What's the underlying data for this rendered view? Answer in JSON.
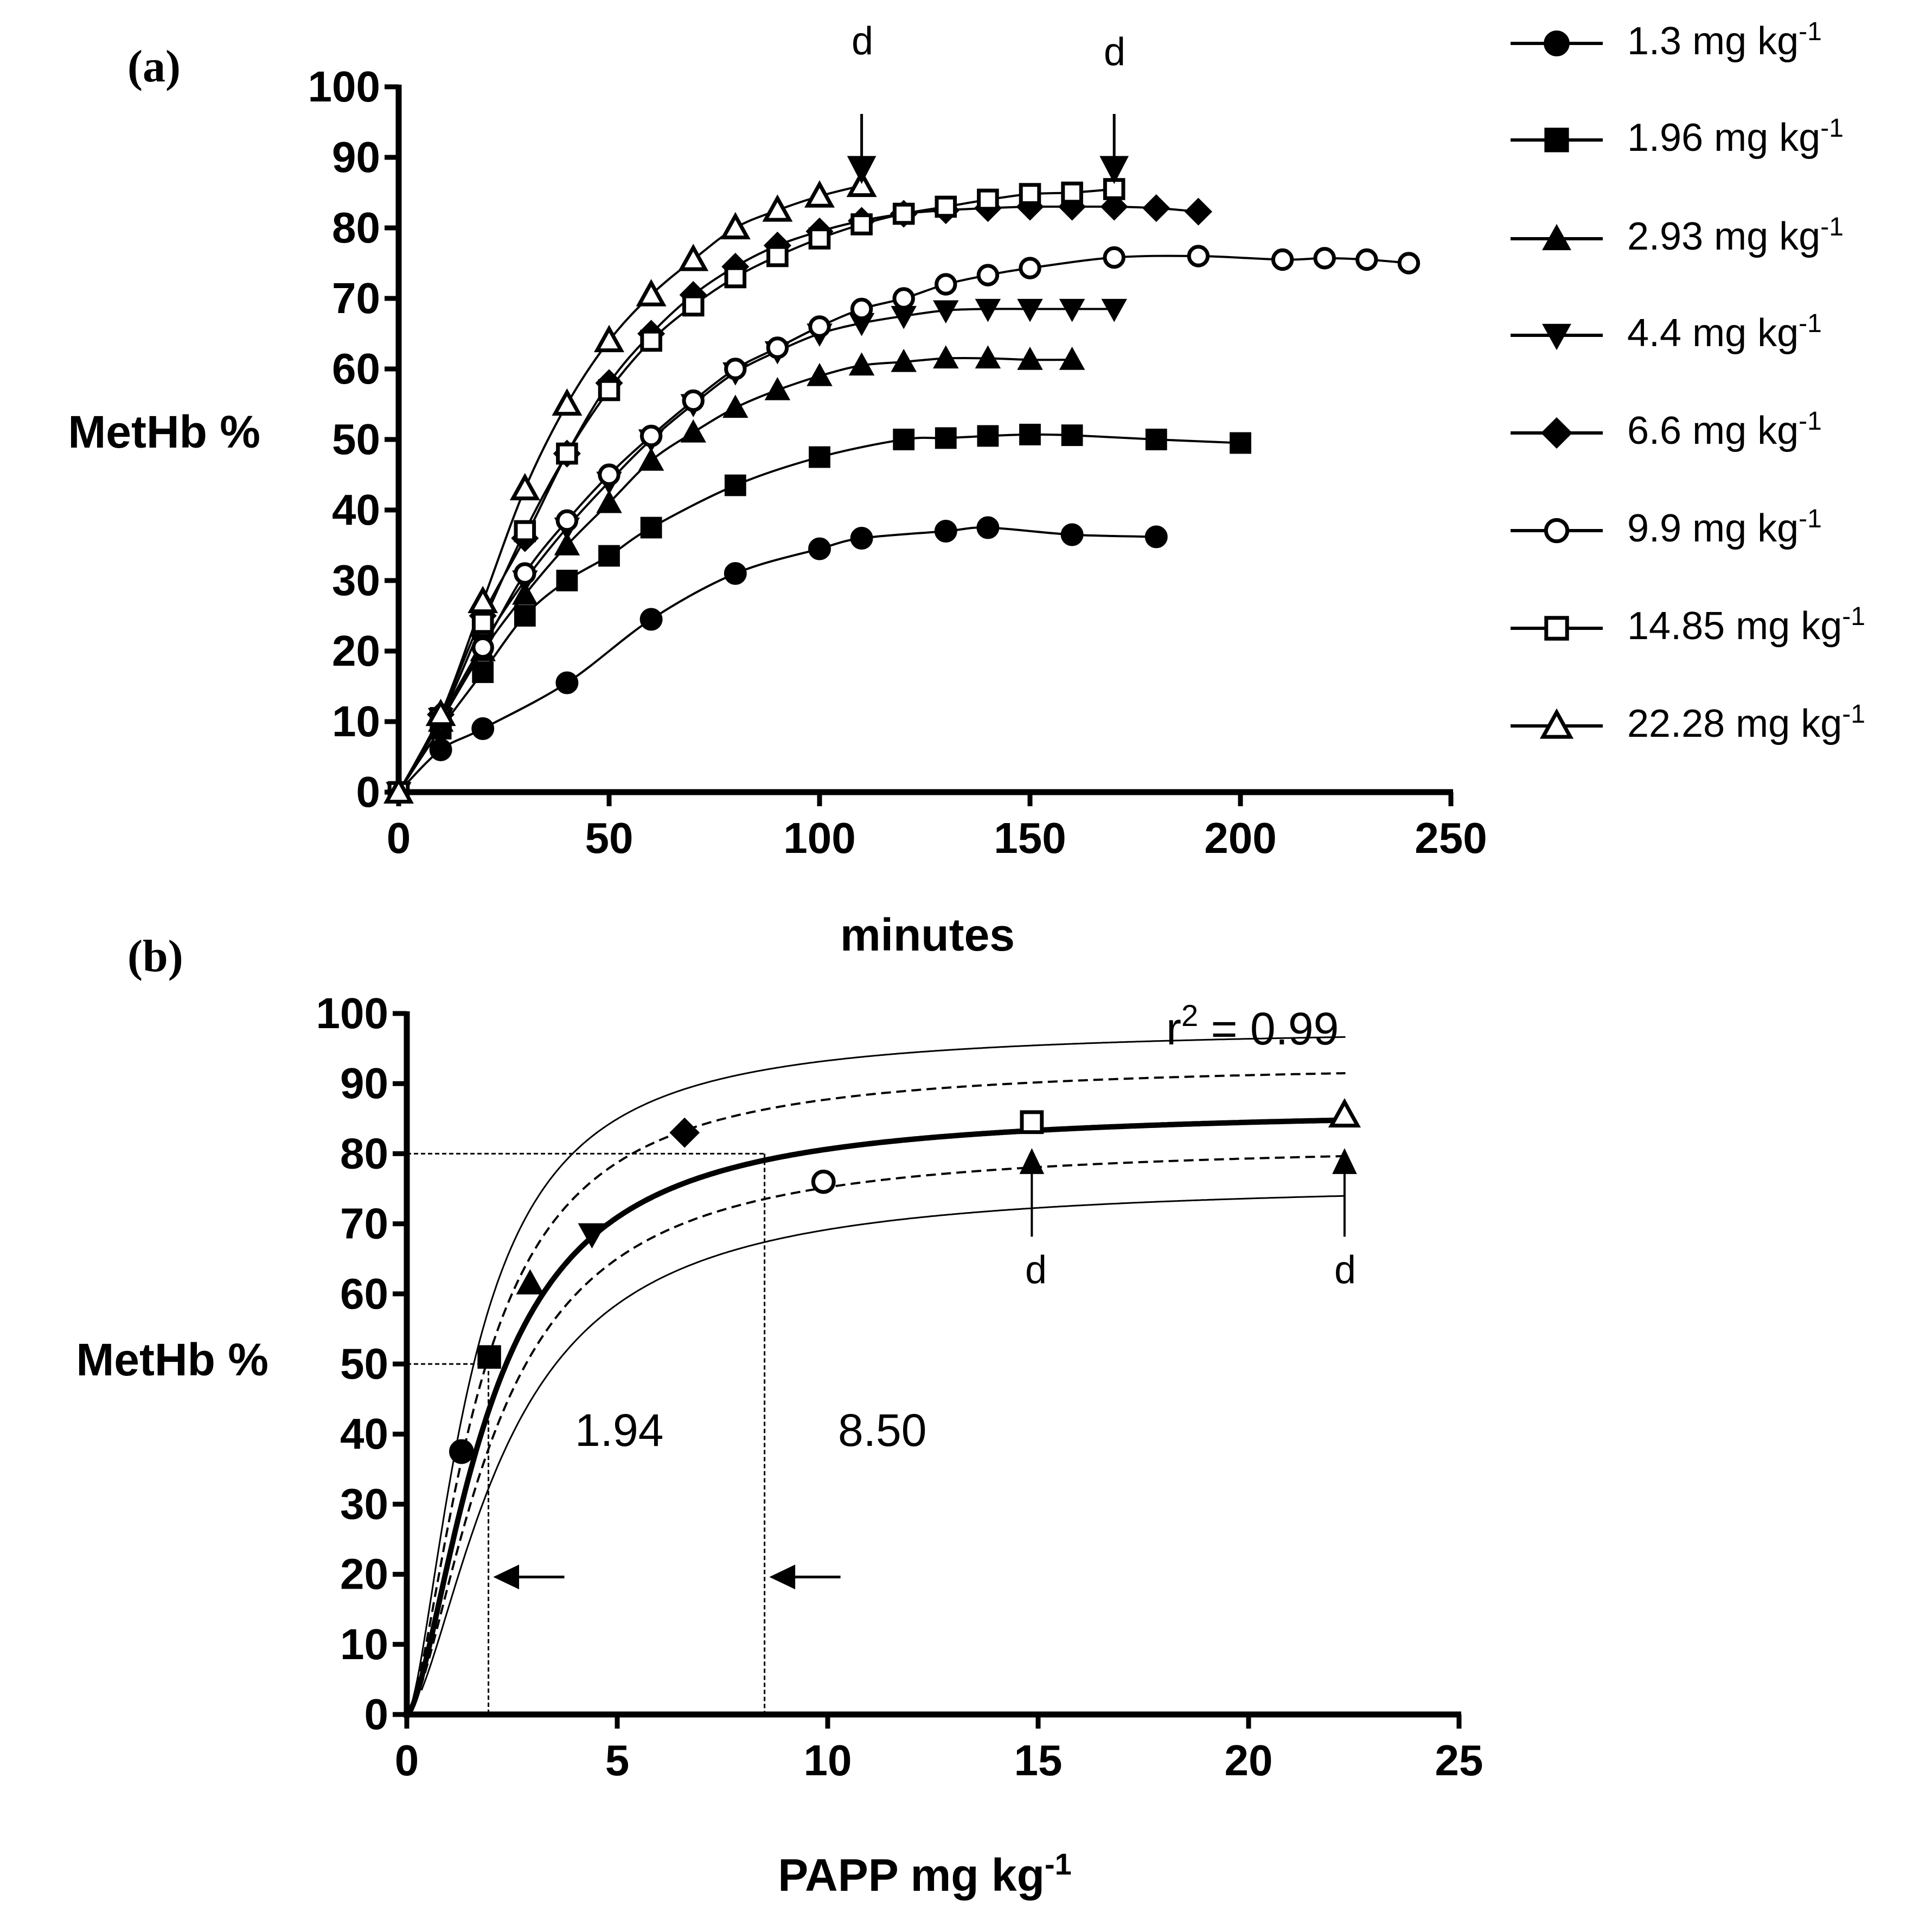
{
  "colors": {
    "ink": "#000000",
    "background": "#ffffff"
  },
  "chart_data": [
    {
      "panel_label": "(a)",
      "type": "line",
      "xlabel": "minutes",
      "ylabel": "MetHb %",
      "xlim": [
        0,
        250
      ],
      "ylim": [
        0,
        100
      ],
      "xticks": [
        0,
        50,
        100,
        150,
        200,
        250
      ],
      "yticks": [
        0,
        10,
        20,
        30,
        40,
        50,
        60,
        70,
        80,
        90,
        100
      ],
      "grid": false,
      "legend_position": "right",
      "annotations": [
        {
          "text": "d",
          "x": 110,
          "y": 86,
          "kind": "down-arrow"
        },
        {
          "text": "d",
          "x": 170,
          "y": 86,
          "kind": "down-arrow"
        }
      ],
      "series": [
        {
          "name": "1.3 mg kg",
          "superscript": "-1",
          "marker": "filled-circle",
          "x": [
            0,
            10,
            20,
            40,
            60,
            80,
            100,
            110,
            130,
            140,
            160,
            180
          ],
          "y": [
            0,
            6,
            9,
            15.5,
            24.5,
            31,
            34.5,
            36,
            37,
            37.5,
            36.5,
            36.2
          ]
        },
        {
          "name": "1.96 mg kg",
          "superscript": "-1",
          "marker": "filled-square",
          "x": [
            0,
            10,
            20,
            30,
            40,
            50,
            60,
            80,
            100,
            120,
            130,
            140,
            150,
            160,
            180,
            200
          ],
          "y": [
            0,
            9,
            17,
            25,
            30,
            33.5,
            37.5,
            43.5,
            47.5,
            50,
            50.2,
            50.5,
            50.7,
            50.6,
            50,
            49.5
          ]
        },
        {
          "name": "2.93 mg kg",
          "superscript": "-1",
          "marker": "filled-triangle-up",
          "x": [
            0,
            10,
            20,
            30,
            40,
            50,
            60,
            70,
            80,
            90,
            100,
            110,
            120,
            130,
            140,
            150,
            160
          ],
          "y": [
            0,
            10,
            20,
            28,
            35,
            41,
            47,
            51,
            54.5,
            57,
            59,
            60.5,
            61,
            61.5,
            61.5,
            61.3,
            61.3
          ]
        },
        {
          "name": "4.4 mg kg",
          "superscript": "-1",
          "marker": "filled-triangle-down",
          "x": [
            0,
            10,
            20,
            30,
            40,
            50,
            60,
            70,
            80,
            90,
            100,
            110,
            120,
            130,
            140,
            150,
            160,
            170
          ],
          "y": [
            0,
            10.5,
            21,
            30,
            37.5,
            44,
            50,
            55,
            59.5,
            62.5,
            65,
            66.5,
            67.5,
            68.3,
            68.5,
            68.5,
            68.5,
            68.5
          ]
        },
        {
          "name": "6.6 mg kg",
          "superscript": "-1",
          "marker": "filled-diamond",
          "x": [
            0,
            10,
            20,
            30,
            40,
            50,
            60,
            70,
            80,
            90,
            100,
            110,
            120,
            130,
            140,
            150,
            160,
            170,
            180,
            190
          ],
          "y": [
            0,
            11,
            25,
            36,
            48,
            58,
            65,
            70.5,
            74.5,
            77.5,
            79.5,
            81,
            82,
            82.5,
            82.8,
            83,
            83,
            83,
            82.8,
            82.3
          ]
        },
        {
          "name": "9.9 mg kg",
          "superscript": "-1",
          "marker": "open-circle",
          "x": [
            0,
            10,
            20,
            30,
            40,
            50,
            60,
            70,
            80,
            90,
            100,
            110,
            120,
            130,
            140,
            150,
            170,
            190,
            210,
            220,
            230,
            240
          ],
          "y": [
            0,
            10,
            20.5,
            31,
            38.5,
            45,
            50.5,
            55.5,
            60,
            63,
            66,
            68.5,
            70,
            72,
            73.3,
            74.3,
            75.8,
            76,
            75.5,
            75.7,
            75.5,
            75
          ]
        },
        {
          "name": "14.85 mg kg",
          "superscript": "-1",
          "marker": "open-square",
          "x": [
            0,
            10,
            20,
            30,
            40,
            50,
            60,
            70,
            80,
            90,
            100,
            110,
            120,
            130,
            140,
            150,
            160,
            170
          ],
          "y": [
            0,
            10.5,
            24,
            37,
            48,
            57,
            64,
            69,
            73,
            76,
            78.5,
            80.5,
            82,
            83,
            84,
            84.8,
            85,
            85.5
          ]
        },
        {
          "name": "22.28 mg kg",
          "superscript": "-1",
          "marker": "open-triangle-up",
          "x": [
            0,
            10,
            20,
            30,
            40,
            50,
            60,
            70,
            80,
            90,
            100,
            110
          ],
          "y": [
            0,
            11,
            27,
            43,
            55,
            64,
            70.5,
            75.5,
            80,
            82.5,
            84.5,
            86
          ]
        }
      ]
    },
    {
      "panel_label": "(b)",
      "type": "scatter",
      "xlabel": "PAPP mg kg",
      "xlabel_superscript": "-1",
      "ylabel": "MetHb %",
      "xlim": [
        0,
        25
      ],
      "ylim": [
        0,
        100
      ],
      "xticks": [
        0,
        5,
        10,
        15,
        20,
        25
      ],
      "yticks": [
        0,
        10,
        20,
        30,
        40,
        50,
        60,
        70,
        80,
        90,
        100
      ],
      "grid": false,
      "fit_label": "r",
      "fit_label_superscript": "2",
      "fit_value": " = 0.99",
      "curve_model": {
        "max": 86.5,
        "ec50": 1.94
      },
      "points": [
        {
          "marker": "filled-circle",
          "x": 1.3,
          "y": 37.5
        },
        {
          "marker": "filled-square",
          "x": 1.96,
          "y": 51
        },
        {
          "marker": "filled-triangle-up",
          "x": 2.93,
          "y": 61.5
        },
        {
          "marker": "filled-triangle-down",
          "x": 4.4,
          "y": 68.5
        },
        {
          "marker": "filled-diamond",
          "x": 6.6,
          "y": 83
        },
        {
          "marker": "open-circle",
          "x": 9.9,
          "y": 76
        },
        {
          "marker": "open-square",
          "x": 14.85,
          "y": 84.5
        },
        {
          "marker": "open-triangle-up",
          "x": 22.28,
          "y": 85.5
        }
      ],
      "reference_lines": [
        {
          "y": 50,
          "x": 1.94,
          "label": "1.94"
        },
        {
          "y": 80,
          "x": 8.5,
          "label": "8.50"
        }
      ],
      "annotations": [
        {
          "text": "d",
          "x": 14.85,
          "y": 79,
          "kind": "up-arrow"
        },
        {
          "text": "d",
          "x": 22.28,
          "y": 79,
          "kind": "up-arrow"
        }
      ]
    }
  ]
}
